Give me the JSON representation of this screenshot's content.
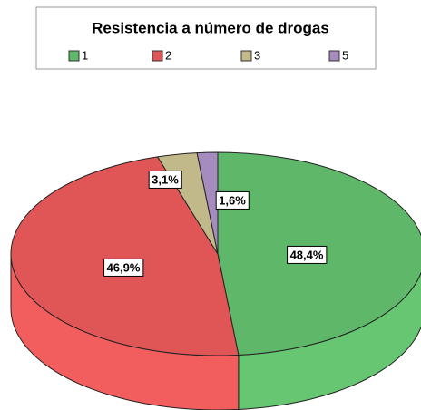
{
  "chart_data": {
    "type": "pie",
    "legend_title": "Resistencia a número de drogas",
    "categories": [
      "1",
      "2",
      "3",
      "5"
    ],
    "values": [
      48.4,
      46.9,
      3.1,
      1.6
    ],
    "value_labels": [
      "48,4%",
      "46,9%",
      "3,1%",
      "1,6%"
    ],
    "colors": [
      "#5fb76a",
      "#e05656",
      "#c1b98a",
      "#a68bbf"
    ],
    "legend_position": "top"
  }
}
